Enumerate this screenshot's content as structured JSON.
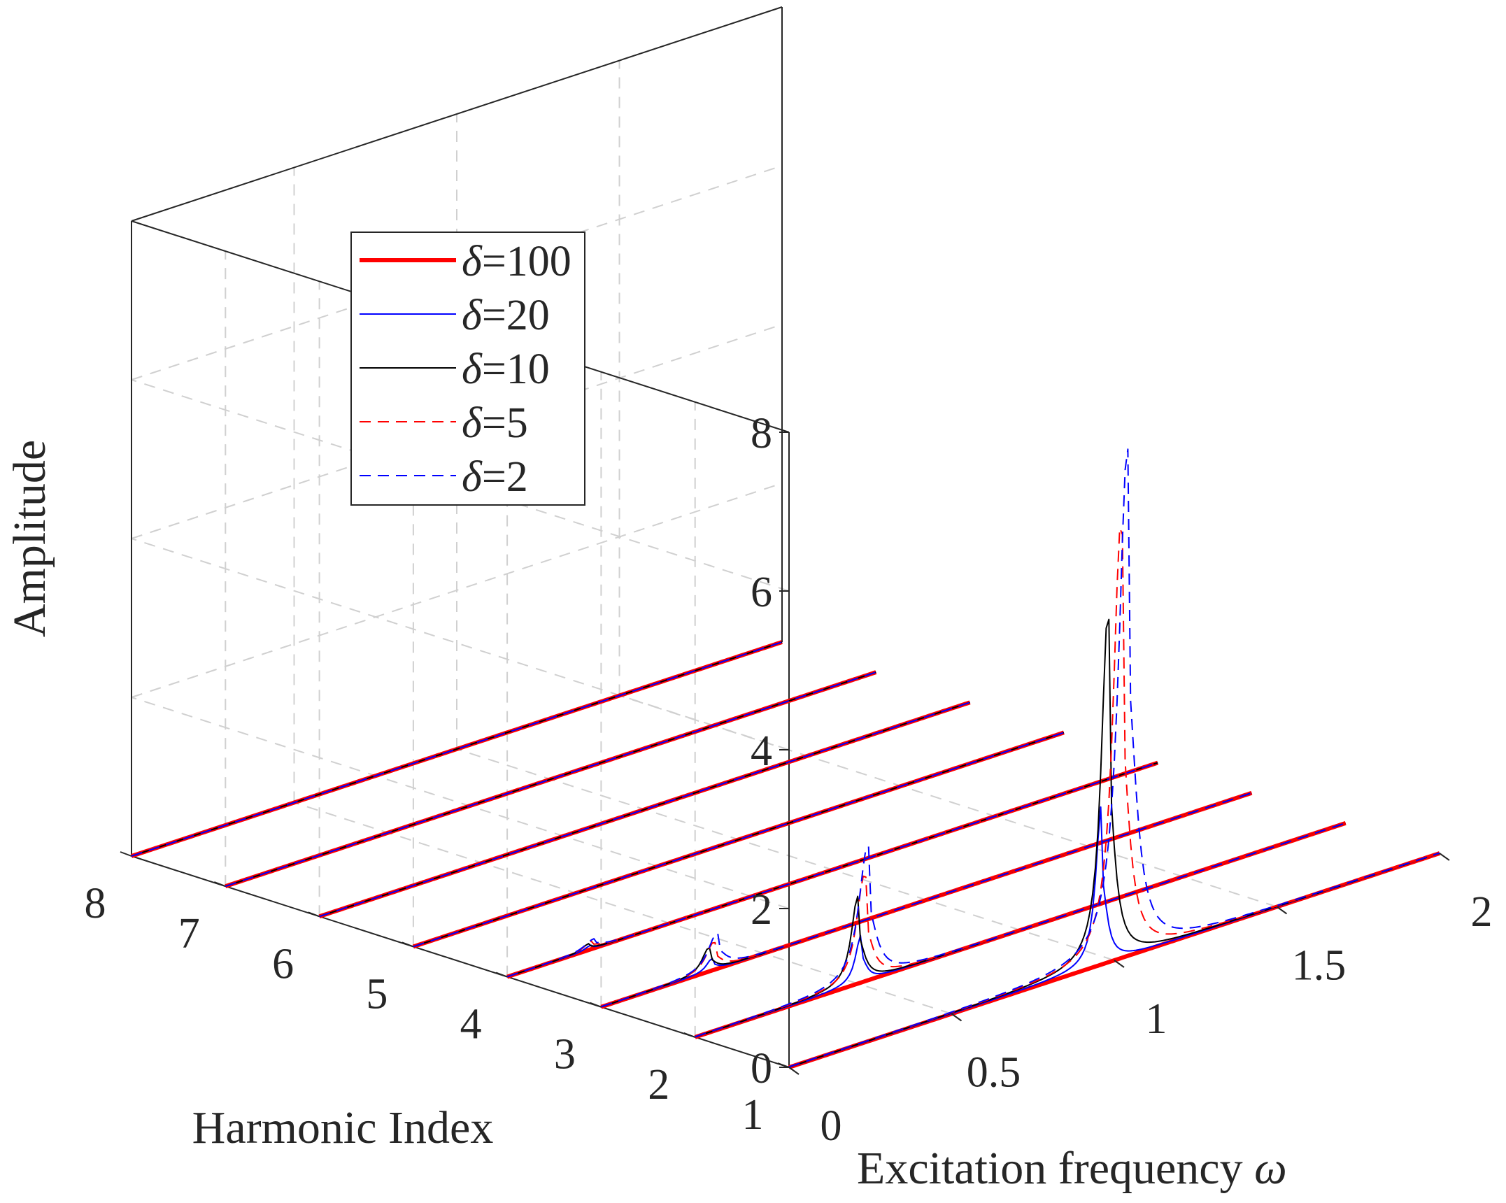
{
  "chart_data": {
    "type": "line",
    "view": "3d-waterfall",
    "title": "",
    "xlabel": "Excitation frequency ω",
    "xlabel_text": "Excitation frequency ",
    "xlabel_symbol": "ω",
    "ylabel": "Harmonic Index",
    "zlabel": "Amplitude",
    "xlim": [
      0,
      2
    ],
    "ylim": [
      1,
      8
    ],
    "zlim": [
      0,
      8
    ],
    "xticks": [
      "0",
      "0.5",
      "1",
      "1.5",
      "2"
    ],
    "yticks": [
      "1",
      "2",
      "3",
      "4",
      "5",
      "6",
      "7",
      "8"
    ],
    "zticks": [
      "0",
      "2",
      "4",
      "6",
      "8"
    ],
    "grid": true,
    "legend_position": "top-left",
    "series": [
      {
        "name": "δ=100",
        "symbol": "δ",
        "value_label": "=100",
        "color": "#ff0000",
        "style": "solid",
        "width": 6,
        "peaks": [
          {
            "harmonic": 1,
            "x": 1.0,
            "amp": 0.0
          }
        ]
      },
      {
        "name": "δ=20",
        "symbol": "δ",
        "value_label": "=20",
        "color": "#0000ff",
        "style": "solid",
        "width": 2,
        "peaks": [
          {
            "harmonic": 1,
            "x": 0.96,
            "amp": 2.0
          },
          {
            "harmonic": 2,
            "x": 0.51,
            "amp": 0.6
          },
          {
            "harmonic": 3,
            "x": 0.34,
            "amp": 0.15
          },
          {
            "harmonic": 4,
            "x": 0.255,
            "amp": 0.05
          }
        ]
      },
      {
        "name": "δ=10",
        "symbol": "δ",
        "value_label": "=10",
        "color": "#000000",
        "style": "solid",
        "width": 2,
        "peaks": [
          {
            "harmonic": 1,
            "x": 0.98,
            "amp": 4.4
          },
          {
            "harmonic": 2,
            "x": 0.5,
            "amp": 1.1
          },
          {
            "harmonic": 3,
            "x": 0.33,
            "amp": 0.3
          },
          {
            "harmonic": 4,
            "x": 0.25,
            "amp": 0.08
          }
        ]
      },
      {
        "name": "δ=5",
        "symbol": "δ",
        "value_label": "=5",
        "color": "#ff0000",
        "style": "dashed",
        "width": 2,
        "peaks": [
          {
            "harmonic": 1,
            "x": 1.02,
            "amp": 5.5
          },
          {
            "harmonic": 2,
            "x": 0.52,
            "amp": 1.35
          },
          {
            "harmonic": 3,
            "x": 0.345,
            "amp": 0.35
          },
          {
            "harmonic": 4,
            "x": 0.26,
            "amp": 0.1
          }
        ]
      },
      {
        "name": "δ=2",
        "symbol": "δ",
        "value_label": "=2",
        "color": "#0000ff",
        "style": "dashed",
        "width": 2,
        "peaks": [
          {
            "harmonic": 1,
            "x": 1.04,
            "amp": 6.4
          },
          {
            "harmonic": 2,
            "x": 0.53,
            "amp": 1.7
          },
          {
            "harmonic": 3,
            "x": 0.355,
            "amp": 0.45
          },
          {
            "harmonic": 4,
            "x": 0.265,
            "amp": 0.12
          }
        ]
      }
    ]
  }
}
